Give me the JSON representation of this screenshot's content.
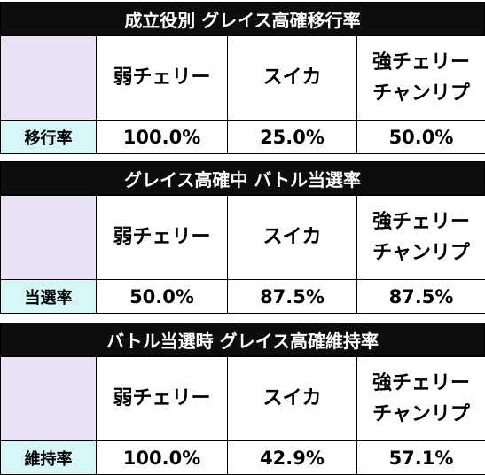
{
  "tables": [
    {
      "title": "成立役別 グレイス高確移行率",
      "headers": [
        "弱チェリー",
        "スイカ",
        "強チェリー\nチャンリプ"
      ],
      "row_label": "移行率",
      "values": [
        "100.0%",
        "25.0%",
        "50.0%"
      ]
    },
    {
      "title": "グレイス高確中 バトル当選率",
      "headers": [
        "弱チェリー",
        "スイカ",
        "強チェリー\nチャンリプ"
      ],
      "row_label": "当選率",
      "values": [
        "50.0%",
        "87.5%",
        "87.5%"
      ]
    },
    {
      "title": "バトル当選時 グレイス高確維持率",
      "headers": [
        "弱チェリー",
        "スイカ",
        "強チェリー\nチャンリプ"
      ],
      "row_label": "維持率",
      "values": [
        "100.0%",
        "42.9%",
        "57.1%"
      ]
    }
  ]
}
